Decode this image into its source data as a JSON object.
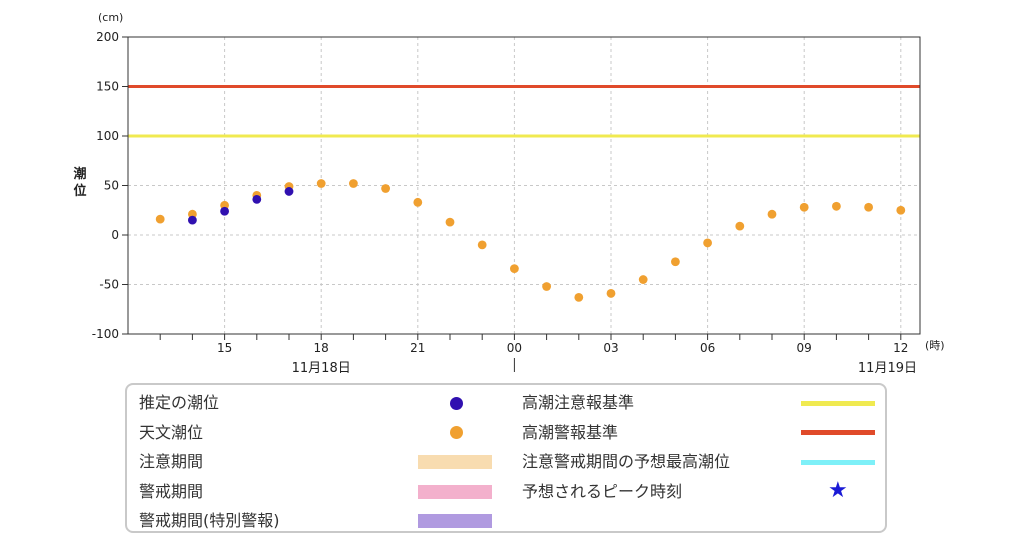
{
  "chart_data": {
    "type": "scatter",
    "unit_label": "(cm)",
    "ylabel": "潮位",
    "ylim": [
      -100,
      200
    ],
    "y_ticks": [
      200,
      150,
      100,
      50,
      0,
      -50,
      -100
    ],
    "x_unit_label": "(時)",
    "x_ticks": [
      {
        "h": 15,
        "label": "15"
      },
      {
        "h": 18,
        "label": "18"
      },
      {
        "h": 21,
        "label": "21"
      },
      {
        "h": 24,
        "label": "00"
      },
      {
        "h": 27,
        "label": "03"
      },
      {
        "h": 30,
        "label": "06"
      },
      {
        "h": 33,
        "label": "09"
      },
      {
        "h": 36,
        "label": "12"
      }
    ],
    "date_labels": [
      {
        "h": 18,
        "label": "11月18日"
      },
      {
        "h": 36,
        "label": "11月19日"
      }
    ],
    "grid": true,
    "reference_lines": [
      {
        "name": "高潮警報基準",
        "value": 150,
        "color": "#e04a2a"
      },
      {
        "name": "高潮注意報基準",
        "value": 100,
        "color": "#f0ea50"
      }
    ],
    "series": [
      {
        "name": "天文潮位",
        "color": "#f0a030",
        "points": [
          [
            13,
            16
          ],
          [
            14,
            21
          ],
          [
            15,
            30
          ],
          [
            16,
            40
          ],
          [
            17,
            49
          ],
          [
            18,
            52
          ],
          [
            19,
            52
          ],
          [
            20,
            47
          ],
          [
            21,
            33
          ],
          [
            22,
            13
          ],
          [
            23,
            -10
          ],
          [
            24,
            -34
          ],
          [
            25,
            -52
          ],
          [
            26,
            -63
          ],
          [
            27,
            -59
          ],
          [
            28,
            -45
          ],
          [
            29,
            -27
          ],
          [
            30,
            -8
          ],
          [
            31,
            9
          ],
          [
            32,
            21
          ],
          [
            33,
            28
          ],
          [
            34,
            29
          ],
          [
            35,
            28
          ],
          [
            36,
            25
          ]
        ]
      },
      {
        "name": "推定の潮位",
        "color": "#3010b0",
        "points": [
          [
            14,
            15
          ],
          [
            15,
            24
          ],
          [
            16,
            36
          ],
          [
            17,
            44
          ]
        ]
      }
    ]
  },
  "legend": {
    "left": [
      {
        "label": "推定の潮位",
        "kind": "dot",
        "color": "#3010b0"
      },
      {
        "label": "天文潮位",
        "kind": "dot",
        "color": "#f0a030"
      },
      {
        "label": "注意期間",
        "kind": "band",
        "color": "#f8dcb0"
      },
      {
        "label": "警戒期間",
        "kind": "band",
        "color": "#f3b0cc"
      },
      {
        "label": "警戒期間(特別警報)",
        "kind": "band",
        "color": "#b09ae0"
      }
    ],
    "right": [
      {
        "label": "高潮注意報基準",
        "kind": "line",
        "color": "#f0ea50"
      },
      {
        "label": "高潮警報基準",
        "kind": "line",
        "color": "#e04a2a"
      },
      {
        "label": "注意警戒期間の予想最高潮位",
        "kind": "line",
        "color": "#7ef0f8"
      },
      {
        "label": "予想されるピーク時刻",
        "kind": "star",
        "color": "#1a1ad6",
        "symbol": "★"
      }
    ]
  }
}
